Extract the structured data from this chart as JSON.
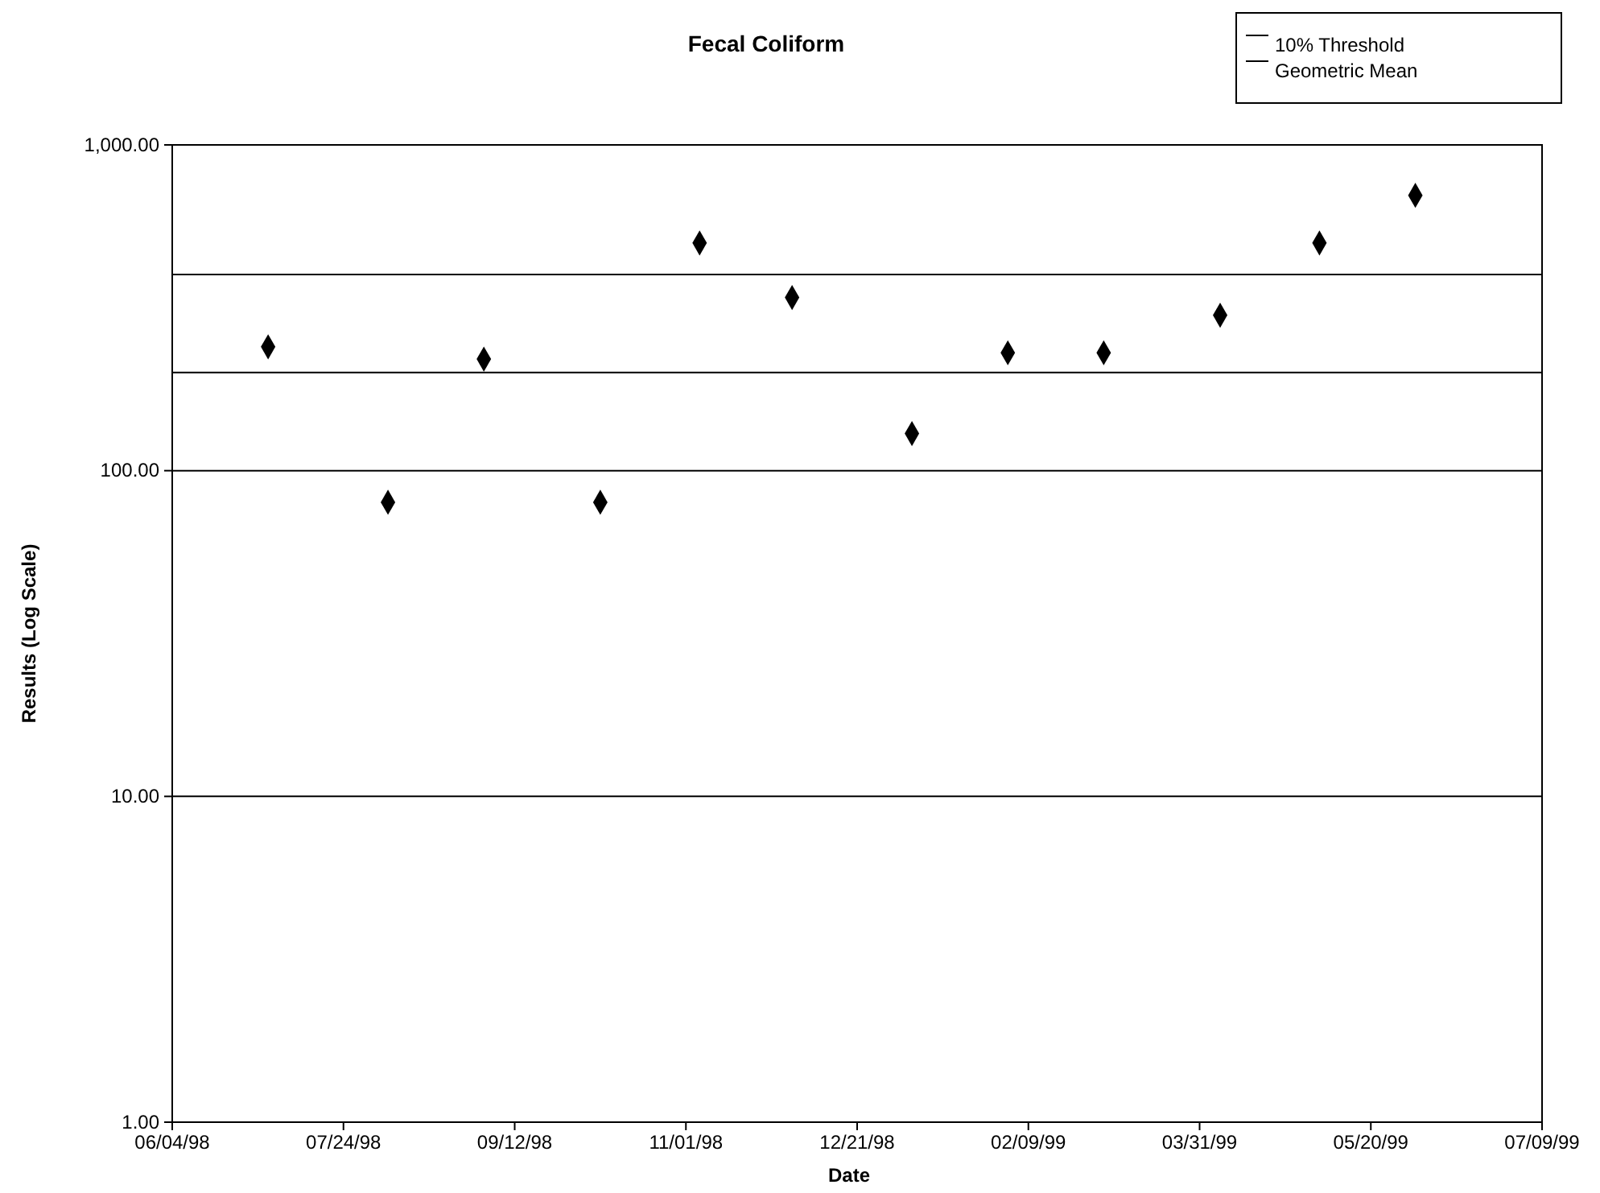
{
  "chart_data": {
    "type": "scatter",
    "title": "Fecal Coliform",
    "xlabel": "Date",
    "ylabel": "Results (Log Scale)",
    "x": [
      "1998-07-02",
      "1998-08-06",
      "1998-09-03",
      "1998-10-07",
      "1998-11-05",
      "1998-12-02",
      "1999-01-06",
      "1999-02-03",
      "1999-03-03",
      "1999-04-06",
      "1999-05-05",
      "1999-06-02"
    ],
    "series": [
      {
        "color": "#000000",
        "values": [
          240,
          80,
          220,
          80,
          500,
          340,
          130,
          230,
          230,
          300,
          500,
          700
        ]
      }
    ],
    "marker": "diamond",
    "log": true,
    "grid": "y",
    "legend": "top right",
    "xlim": [
      "1998-06-04",
      "1999-07-09"
    ],
    "xticks": [
      {
        "value": "1998-06-04",
        "label": "06/04/98"
      },
      {
        "value": "1998-07-24",
        "label": "07/24/98"
      },
      {
        "value": "1998-09-12",
        "label": "09/12/98"
      },
      {
        "value": "1998-11-01",
        "label": "11/01/98"
      },
      {
        "value": "1998-12-21",
        "label": "12/21/98"
      },
      {
        "value": "1999-02-09",
        "label": "02/09/99"
      },
      {
        "value": "1999-03-31",
        "label": "03/31/99"
      },
      {
        "value": "1999-05-20",
        "label": "05/20/99"
      },
      {
        "value": "1999-07-09",
        "label": "07/09/99"
      }
    ],
    "ylim": [
      1,
      1000
    ],
    "yticks": [
      {
        "value": 1,
        "label": "1.00"
      },
      {
        "value": 10,
        "label": "10.00"
      },
      {
        "value": 100,
        "label": "100.00"
      },
      {
        "value": 1000,
        "label": "1,000.00"
      }
    ],
    "ref_lines": [
      {
        "axis": "y",
        "value": 400,
        "label": "10% Threshold",
        "color": "#000000"
      },
      {
        "axis": "y",
        "value": 200,
        "label": "Geometric Mean",
        "color": "#000000"
      }
    ]
  }
}
